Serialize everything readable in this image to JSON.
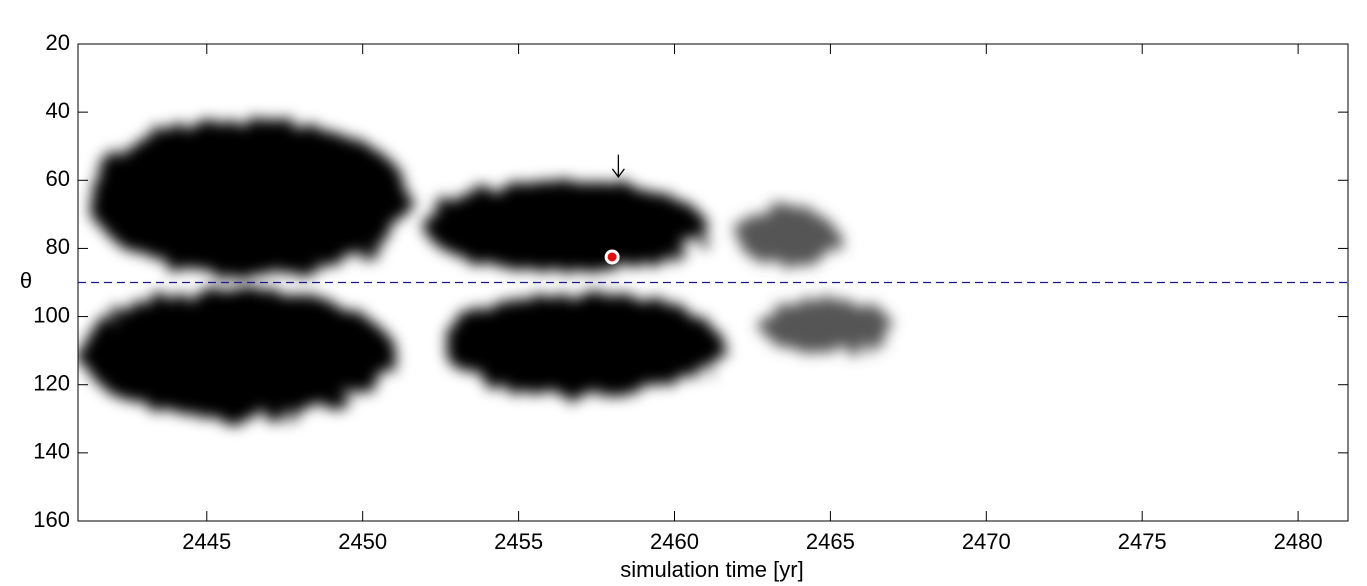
{
  "chart_data": {
    "type": "butterfly",
    "xlabel": "simulation time [yr]",
    "ylabel": "θ",
    "xlim": [
      2440.87,
      2481.6
    ],
    "xticks": [
      2445,
      2450,
      2455,
      2460,
      2465,
      2470,
      2475,
      2480
    ],
    "ylim": [
      20,
      160
    ],
    "yticks": [
      20,
      40,
      60,
      80,
      100,
      120,
      140,
      160
    ],
    "y_inverted": true,
    "regions": [
      {
        "x": [
          2441.2,
          2451.5
        ],
        "theta": [
          42,
          88
        ],
        "color": "#000000"
      },
      {
        "x": [
          2441.0,
          2451.0
        ],
        "theta": [
          92,
          130
        ],
        "color": "#000000"
      },
      {
        "x": [
          2452.0,
          2461.0
        ],
        "theta": [
          60,
          87
        ],
        "color": "#000000"
      },
      {
        "x": [
          2452.5,
          2461.5
        ],
        "theta": [
          93,
          123
        ],
        "color": "#000000"
      },
      {
        "x": [
          2462.0,
          2465.2
        ],
        "theta": [
          68,
          85
        ],
        "color": "#555555"
      },
      {
        "x": [
          2462.8,
          2467.0
        ],
        "theta": [
          95,
          111
        ],
        "color": "#555555"
      }
    ],
    "reference_line": {
      "y": 90,
      "color": "#1a1a8c"
    },
    "marker": {
      "x": 2458.0,
      "y": 82.5,
      "color": "#e01010"
    },
    "arrow": {
      "x": 2458.2,
      "y": [
        52.5,
        59
      ]
    }
  }
}
